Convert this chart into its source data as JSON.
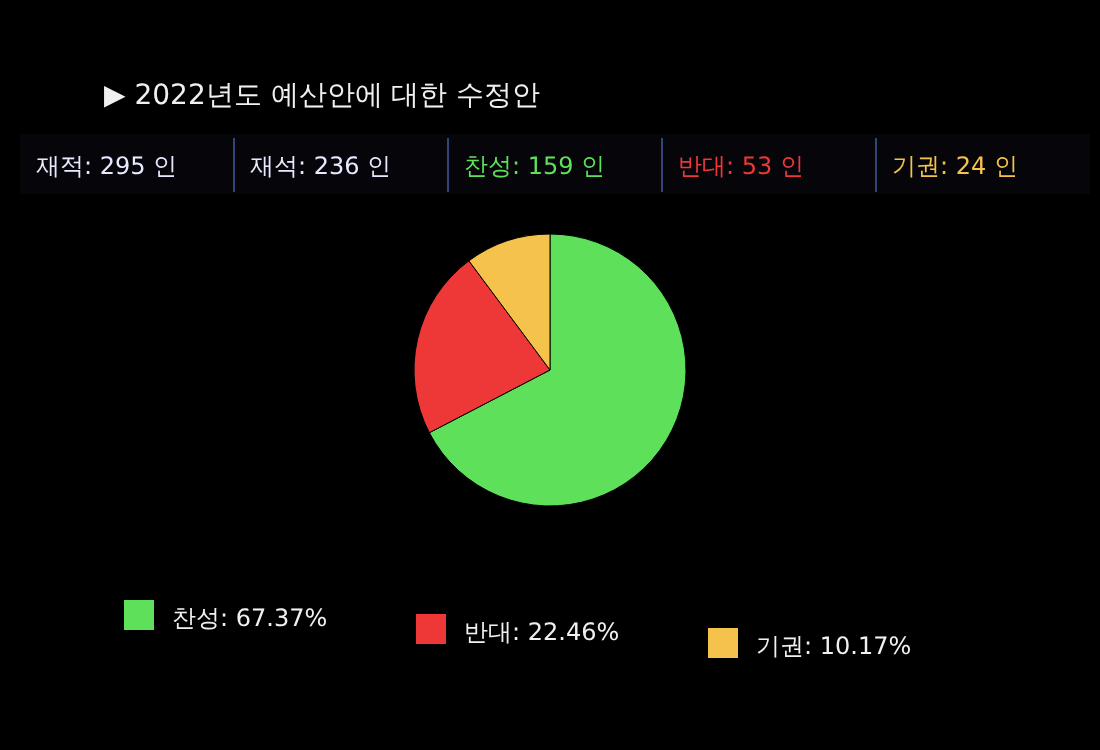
{
  "chart_data": {
    "type": "pie",
    "title": "▶ 2022년도 예산안에 대한 수정안",
    "annotations": [
      "재적: 295 인",
      "재석: 236 인",
      "찬성: 159 인",
      "반대: 53 인",
      "기권: 24 인"
    ],
    "categories": [
      "찬성",
      "반대",
      "기권"
    ],
    "values": [
      67.37,
      22.46,
      10.17
    ],
    "value_labels": [
      "67.37%",
      "22.46%",
      "10.17%"
    ],
    "colors": [
      "#5ee05a",
      "#ee3838",
      "#f5c24c"
    ],
    "legend": "bottom"
  }
}
